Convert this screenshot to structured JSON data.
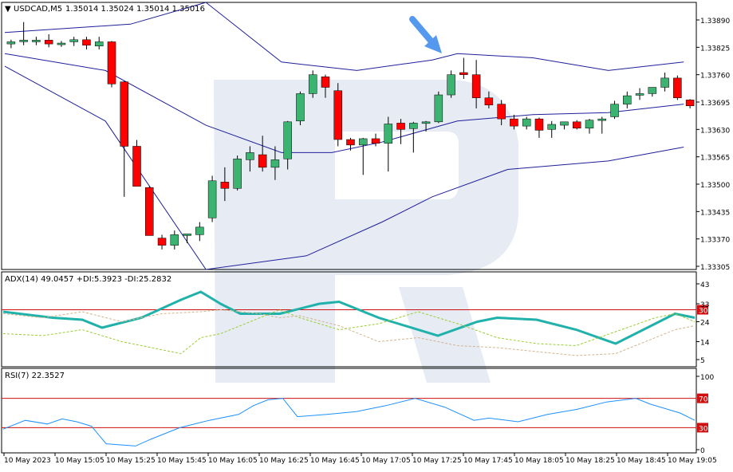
{
  "header": {
    "symbol_label": "USDCAD,M5",
    "ohlc_label": "1.35014 1.35024 1.35014 1.35016"
  },
  "colors": {
    "bull": "#3cb371",
    "bear": "#ff0000",
    "bands": "#1f1f9a",
    "adx": "#20b2aa",
    "plus_di": "#9acd32",
    "minus_di": "#d2b48c",
    "rsi": "#1e90ff",
    "level": "#d01010",
    "arrow": "#5599ee",
    "watermark": "#e6ebf4"
  },
  "time_labels": [
    "10 May 2023",
    "10 May 15:05",
    "10 May 15:25",
    "10 May 15:45",
    "10 May 16:05",
    "10 May 16:25",
    "10 May 16:45",
    "10 May 17:05",
    "10 May 17:25",
    "10 May 17:45",
    "10 May 18:05",
    "10 May 18:25",
    "10 May 18:45",
    "10 May 19:05"
  ],
  "chart_data": [
    {
      "type": "candlestick",
      "title": "USDCAD,M5",
      "price_ticks": [
        "1.33890",
        "1.33825",
        "1.33760",
        "1.33695",
        "1.33630",
        "1.33565",
        "1.33500",
        "1.33435",
        "1.33370",
        "1.33305"
      ],
      "ylim": [
        1.33305,
        1.3389
      ],
      "candles": [
        {
          "o": 1.33833,
          "h": 1.33843,
          "l": 1.33823,
          "c": 1.33838
        },
        {
          "o": 1.3384,
          "h": 1.33885,
          "l": 1.3383,
          "c": 1.33842
        },
        {
          "o": 1.33838,
          "h": 1.3385,
          "l": 1.3383,
          "c": 1.33842
        },
        {
          "o": 1.33842,
          "h": 1.33856,
          "l": 1.33825,
          "c": 1.33833
        },
        {
          "o": 1.33833,
          "h": 1.3384,
          "l": 1.33826,
          "c": 1.33835
        },
        {
          "o": 1.33838,
          "h": 1.3385,
          "l": 1.33828,
          "c": 1.33843
        },
        {
          "o": 1.33843,
          "h": 1.3385,
          "l": 1.3382,
          "c": 1.3383
        },
        {
          "o": 1.33828,
          "h": 1.3385,
          "l": 1.3382,
          "c": 1.33838
        },
        {
          "o": 1.33838,
          "h": 1.3384,
          "l": 1.3373,
          "c": 1.33738
        },
        {
          "o": 1.33743,
          "h": 1.33745,
          "l": 1.3347,
          "c": 1.3359
        },
        {
          "o": 1.3359,
          "h": 1.33605,
          "l": 1.33495,
          "c": 1.33495
        },
        {
          "o": 1.33492,
          "h": 1.33495,
          "l": 1.33383,
          "c": 1.33378
        },
        {
          "o": 1.33372,
          "h": 1.3338,
          "l": 1.33345,
          "c": 1.33355
        },
        {
          "o": 1.33355,
          "h": 1.3339,
          "l": 1.33345,
          "c": 1.3338
        },
        {
          "o": 1.33378,
          "h": 1.3338,
          "l": 1.3336,
          "c": 1.33382
        },
        {
          "o": 1.3338,
          "h": 1.3341,
          "l": 1.33365,
          "c": 1.33398
        },
        {
          "o": 1.3342,
          "h": 1.3352,
          "l": 1.3341,
          "c": 1.33508
        },
        {
          "o": 1.33505,
          "h": 1.3354,
          "l": 1.3346,
          "c": 1.3349
        },
        {
          "o": 1.3349,
          "h": 1.33568,
          "l": 1.33485,
          "c": 1.3356
        },
        {
          "o": 1.33558,
          "h": 1.3359,
          "l": 1.3353,
          "c": 1.33575
        },
        {
          "o": 1.3357,
          "h": 1.33615,
          "l": 1.3353,
          "c": 1.3354
        },
        {
          "o": 1.3354,
          "h": 1.3359,
          "l": 1.3351,
          "c": 1.33558
        },
        {
          "o": 1.3356,
          "h": 1.3365,
          "l": 1.33535,
          "c": 1.33648
        },
        {
          "o": 1.3365,
          "h": 1.3372,
          "l": 1.3364,
          "c": 1.33715
        },
        {
          "o": 1.33715,
          "h": 1.3377,
          "l": 1.33705,
          "c": 1.3376
        },
        {
          "o": 1.33755,
          "h": 1.3376,
          "l": 1.33705,
          "c": 1.3373
        },
        {
          "o": 1.33722,
          "h": 1.3374,
          "l": 1.3359,
          "c": 1.33606
        },
        {
          "o": 1.33606,
          "h": 1.3361,
          "l": 1.3358,
          "c": 1.33593
        },
        {
          "o": 1.33593,
          "h": 1.3361,
          "l": 1.33522,
          "c": 1.33608
        },
        {
          "o": 1.33608,
          "h": 1.3362,
          "l": 1.3359,
          "c": 1.33597
        },
        {
          "o": 1.33597,
          "h": 1.3366,
          "l": 1.3353,
          "c": 1.33643
        },
        {
          "o": 1.33645,
          "h": 1.33655,
          "l": 1.33595,
          "c": 1.3363
        },
        {
          "o": 1.33632,
          "h": 1.33648,
          "l": 1.33575,
          "c": 1.33645
        },
        {
          "o": 1.33645,
          "h": 1.3365,
          "l": 1.33625,
          "c": 1.33648
        },
        {
          "o": 1.33648,
          "h": 1.3372,
          "l": 1.33645,
          "c": 1.33712
        },
        {
          "o": 1.33712,
          "h": 1.3377,
          "l": 1.33705,
          "c": 1.3376
        },
        {
          "o": 1.33765,
          "h": 1.338,
          "l": 1.3375,
          "c": 1.3376
        },
        {
          "o": 1.3376,
          "h": 1.33795,
          "l": 1.3368,
          "c": 1.33705
        },
        {
          "o": 1.33705,
          "h": 1.3372,
          "l": 1.3368,
          "c": 1.33688
        },
        {
          "o": 1.3369,
          "h": 1.337,
          "l": 1.3364,
          "c": 1.33655
        },
        {
          "o": 1.33655,
          "h": 1.33665,
          "l": 1.3363,
          "c": 1.33638
        },
        {
          "o": 1.33638,
          "h": 1.3366,
          "l": 1.3363,
          "c": 1.33655
        },
        {
          "o": 1.33655,
          "h": 1.33658,
          "l": 1.3361,
          "c": 1.33628
        },
        {
          "o": 1.3363,
          "h": 1.3365,
          "l": 1.3361,
          "c": 1.33642
        },
        {
          "o": 1.3364,
          "h": 1.33648,
          "l": 1.3363,
          "c": 1.33648
        },
        {
          "o": 1.33648,
          "h": 1.33652,
          "l": 1.3363,
          "c": 1.33633
        },
        {
          "o": 1.33633,
          "h": 1.33655,
          "l": 1.3362,
          "c": 1.33652
        },
        {
          "o": 1.33652,
          "h": 1.3366,
          "l": 1.3362,
          "c": 1.33655
        },
        {
          "o": 1.3366,
          "h": 1.33698,
          "l": 1.33655,
          "c": 1.3369
        },
        {
          "o": 1.3369,
          "h": 1.3372,
          "l": 1.3368,
          "c": 1.3371
        },
        {
          "o": 1.33712,
          "h": 1.33728,
          "l": 1.337,
          "c": 1.33715
        },
        {
          "o": 1.33715,
          "h": 1.3373,
          "l": 1.33708,
          "c": 1.3373
        },
        {
          "o": 1.3373,
          "h": 1.33765,
          "l": 1.3372,
          "c": 1.33752
        },
        {
          "o": 1.33752,
          "h": 1.33758,
          "l": 1.337,
          "c": 1.33705
        },
        {
          "o": 1.337,
          "h": 1.33702,
          "l": 1.3368,
          "c": 1.33686
        }
      ],
      "bands": {
        "upper": [
          [
            0,
            1.3386
          ],
          [
            10,
            1.3388
          ],
          [
            16,
            1.3394
          ],
          [
            22,
            1.3379
          ],
          [
            28,
            1.3377
          ],
          [
            34,
            1.33795
          ],
          [
            36,
            1.3381
          ],
          [
            42,
            1.338
          ],
          [
            48,
            1.3377
          ],
          [
            54,
            1.3379
          ]
        ],
        "middle": [
          [
            0,
            1.3381
          ],
          [
            8,
            1.3377
          ],
          [
            16,
            1.3364
          ],
          [
            22,
            1.33575
          ],
          [
            26,
            1.33575
          ],
          [
            30,
            1.336
          ],
          [
            36,
            1.3365
          ],
          [
            42,
            1.33665
          ],
          [
            48,
            1.3367
          ],
          [
            54,
            1.3369
          ]
        ],
        "lower": [
          [
            0,
            1.3378
          ],
          [
            8,
            1.3365
          ],
          [
            16,
            1.3323
          ],
          [
            24,
            1.3333
          ],
          [
            30,
            1.3341
          ],
          [
            34,
            1.3347
          ],
          [
            40,
            1.33535
          ],
          [
            48,
            1.33555
          ],
          [
            54,
            1.33588
          ]
        ]
      }
    },
    {
      "type": "line",
      "title": "ADX(14) 49.0457 +DI:5.3923 -DI:25.2832",
      "ticks": [
        "43",
        "33",
        "30",
        "24",
        "14",
        "5"
      ],
      "ylim": [
        3,
        45
      ],
      "levels": [
        30
      ],
      "series": [
        {
          "name": "ADX",
          "values": [
            [
              0,
              29
            ],
            [
              5,
              26
            ],
            [
              8,
              25
            ],
            [
              10,
              21
            ],
            [
              14,
              26
            ],
            [
              18,
              35
            ],
            [
              20,
              39
            ],
            [
              22,
              33
            ],
            [
              24,
              28
            ],
            [
              28,
              28
            ],
            [
              32,
              33
            ],
            [
              34,
              34
            ],
            [
              38,
              26
            ],
            [
              40,
              23
            ],
            [
              44,
              17
            ],
            [
              48,
              24
            ],
            [
              50,
              26
            ],
            [
              54,
              25
            ],
            [
              58,
              20
            ],
            [
              62,
              13
            ],
            [
              66,
              23
            ],
            [
              68,
              28
            ],
            [
              70,
              26
            ]
          ]
        },
        {
          "name": "+DI",
          "values": [
            [
              0,
              18
            ],
            [
              4,
              17
            ],
            [
              8,
              20
            ],
            [
              12,
              14
            ],
            [
              16,
              10
            ],
            [
              18,
              8
            ],
            [
              20,
              16
            ],
            [
              22,
              18
            ],
            [
              26,
              26
            ],
            [
              28,
              30
            ],
            [
              30,
              26
            ],
            [
              34,
              20
            ],
            [
              38,
              23
            ],
            [
              42,
              29
            ],
            [
              46,
              23
            ],
            [
              50,
              16
            ],
            [
              54,
              13
            ],
            [
              58,
              12
            ],
            [
              62,
              19
            ],
            [
              66,
              26
            ],
            [
              68,
              28
            ],
            [
              70,
              24
            ]
          ]
        },
        {
          "name": "-DI",
          "values": [
            [
              0,
              28
            ],
            [
              4,
              26
            ],
            [
              8,
              29
            ],
            [
              12,
              24
            ],
            [
              16,
              28
            ],
            [
              20,
              29
            ],
            [
              22,
              30
            ],
            [
              26,
              28
            ],
            [
              28,
              26
            ],
            [
              30,
              27
            ],
            [
              34,
              22
            ],
            [
              38,
              14
            ],
            [
              42,
              16
            ],
            [
              46,
              12
            ],
            [
              50,
              11
            ],
            [
              54,
              9
            ],
            [
              58,
              7
            ],
            [
              62,
              8
            ],
            [
              66,
              16
            ],
            [
              68,
              20
            ],
            [
              70,
              22
            ]
          ]
        }
      ]
    },
    {
      "type": "line",
      "title": "RSI(7) 22.3527",
      "ticks": [
        "100",
        "70",
        "30",
        "0"
      ],
      "ylim": [
        0,
        100
      ],
      "levels": [
        70,
        30
      ],
      "series": [
        {
          "name": "RSI",
          "values": [
            [
              0,
              28
            ],
            [
              3,
              40
            ],
            [
              6,
              35
            ],
            [
              8,
              42
            ],
            [
              10,
              38
            ],
            [
              12,
              32
            ],
            [
              14,
              8
            ],
            [
              18,
              5
            ],
            [
              20,
              14
            ],
            [
              24,
              30
            ],
            [
              28,
              40
            ],
            [
              32,
              48
            ],
            [
              34,
              60
            ],
            [
              36,
              68
            ],
            [
              38,
              70
            ],
            [
              40,
              45
            ],
            [
              44,
              48
            ],
            [
              48,
              52
            ],
            [
              52,
              60
            ],
            [
              56,
              70
            ],
            [
              60,
              58
            ],
            [
              64,
              40
            ],
            [
              66,
              43
            ],
            [
              70,
              38
            ],
            [
              74,
              48
            ],
            [
              78,
              55
            ],
            [
              82,
              65
            ],
            [
              86,
              70
            ],
            [
              88,
              62
            ],
            [
              92,
              50
            ],
            [
              94,
              40
            ]
          ]
        }
      ]
    }
  ]
}
